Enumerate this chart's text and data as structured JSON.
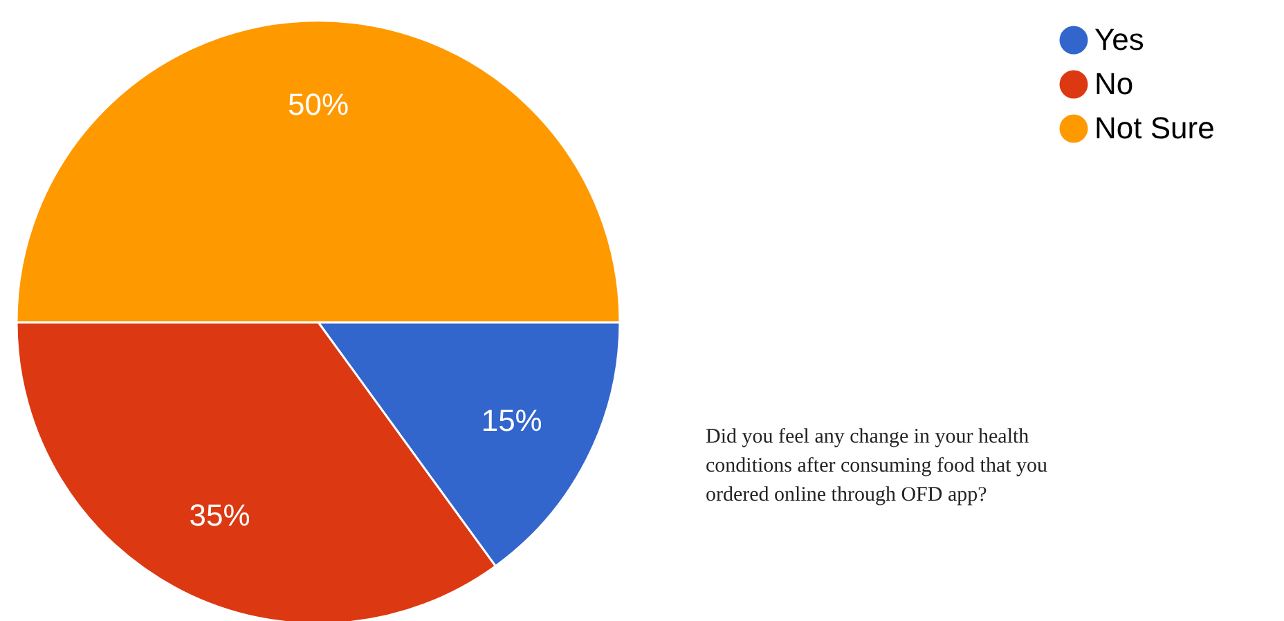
{
  "chart_data": {
    "type": "pie",
    "categories": [
      "Yes",
      "No",
      "Not Sure"
    ],
    "values": [
      15,
      35,
      50
    ],
    "colors": [
      "#3366cc",
      "#dc3912",
      "#ff9900"
    ],
    "value_labels": [
      "15%",
      "35%",
      "50%"
    ],
    "legend": "top right",
    "annotations": [
      "Did you feel any change in your health conditions after consuming food that you ordered online through OFD app?"
    ]
  }
}
